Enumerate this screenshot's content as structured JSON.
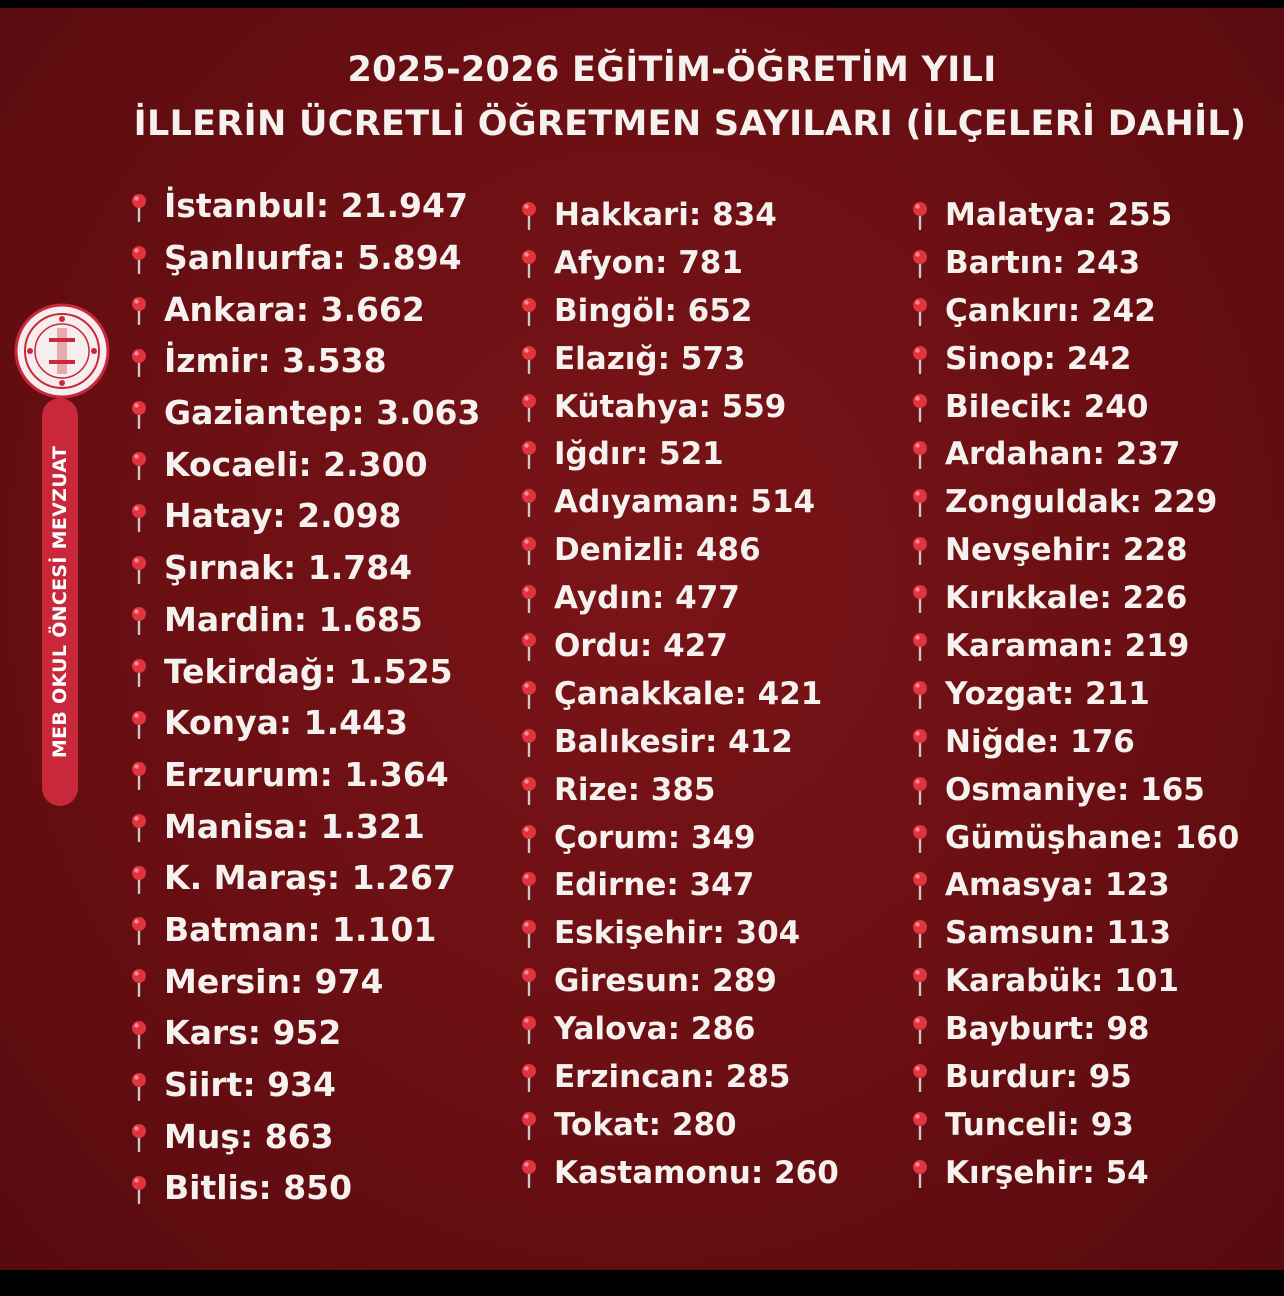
{
  "title_line1": "2025-2026 EĞİTİM-ÖĞRETİM YILI",
  "title_line2": "İLLERİN ÜCRETLİ ÖĞRETMEN SAYILARI (İLÇELERİ DAHİL)",
  "sidebar_text": "MEB OKUL ÖNCESİ MEVZUAT",
  "pin_icon": "round-pushpin-icon",
  "colors": {
    "background": "#6a0f13",
    "pin": "#e0353f",
    "sidebar": "#c8283a",
    "text": "#f4f1ee"
  },
  "columns": [
    [
      "İstanbul: 21.947",
      "Şanlıurfa: 5.894",
      "Ankara: 3.662",
      "İzmir: 3.538",
      "Gaziantep: 3.063",
      "Kocaeli: 2.300",
      "Hatay: 2.098",
      "Şırnak: 1.784",
      "Mardin: 1.685",
      "Tekirdağ: 1.525",
      "Konya: 1.443",
      "Erzurum: 1.364",
      "Manisa: 1.321",
      "K. Maraş: 1.267",
      "Batman: 1.101",
      "Mersin: 974",
      "Kars: 952",
      "Siirt: 934",
      "Muş: 863",
      "Bitlis: 850"
    ],
    [
      "Hakkari: 834",
      "Afyon: 781",
      "Bingöl: 652",
      "Elazığ: 573",
      "Kütahya: 559",
      "Iğdır: 521",
      "Adıyaman: 514",
      "Denizli: 486",
      "Aydın: 477",
      "Ordu: 427",
      "Çanakkale: 421",
      "Balıkesir: 412",
      "Rize: 385",
      "Çorum: 349",
      "Edirne: 347",
      "Eskişehir: 304",
      "Giresun: 289",
      "Yalova: 286",
      "Erzincan: 285",
      "Tokat: 280",
      "Kastamonu: 260"
    ],
    [
      "Malatya: 255",
      "Bartın: 243",
      "Çankırı: 242",
      "Sinop: 242",
      "Bilecik: 240",
      "Ardahan: 237",
      "Zonguldak: 229",
      "Nevşehir: 228",
      "Kırıkkale: 226",
      "Karaman: 219",
      "Yozgat: 211",
      "Niğde: 176",
      "Osmaniye: 165",
      "Gümüşhane: 160",
      "Amasya: 123",
      "Samsun: 113",
      "Karabük: 101",
      "Bayburt: 98",
      "Burdur: 95",
      "Tunceli: 93",
      "Kırşehir: 54"
    ]
  ]
}
